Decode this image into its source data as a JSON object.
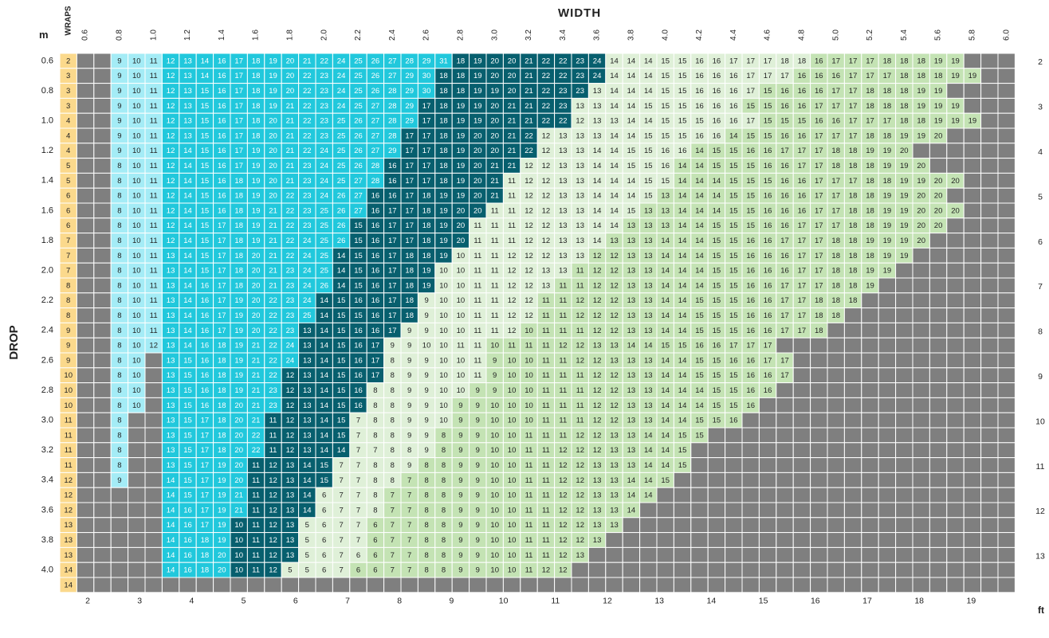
{
  "chart_data": {
    "type": "heatmap",
    "title": "WIDTH",
    "ylabel": "DROP",
    "corner_label": "m",
    "wraps_label": "WRAPS",
    "unit_label_bottom": "ft",
    "width_ticks_m": [
      "0.6",
      "0.8",
      "1.0",
      "1.2",
      "1.4",
      "1.6",
      "1.8",
      "2.0",
      "2.2",
      "2.4",
      "2.6",
      "2.8",
      "3.0",
      "3.2",
      "3.4",
      "3.6",
      "3.8",
      "4.0",
      "4.2",
      "4.4",
      "4.6",
      "4.8",
      "5.0",
      "5.2",
      "5.4",
      "5.6",
      "5.8",
      "6.0"
    ],
    "width_ticks_ft": [
      "2",
      "3",
      "4",
      "5",
      "6",
      "7",
      "8",
      "9",
      "10",
      "11",
      "12",
      "13",
      "14",
      "15",
      "16",
      "17",
      "18",
      "19"
    ],
    "drop_ticks_m": [
      "0.6",
      "0.8",
      "1.0",
      "1.2",
      "1.4",
      "1.6",
      "1.8",
      "2.0",
      "2.2",
      "2.4",
      "2.6",
      "2.8",
      "3.0",
      "3.2",
      "3.4",
      "3.6",
      "3.8",
      "4.0"
    ],
    "drop_ticks_ft": [
      "2",
      "3",
      "4",
      "5",
      "6",
      "7",
      "8",
      "9",
      "10",
      "11",
      "12",
      "13"
    ],
    "wraps": [
      2,
      3,
      3,
      3,
      4,
      4,
      4,
      5,
      5,
      6,
      6,
      6,
      7,
      7,
      7,
      8,
      8,
      8,
      9,
      9,
      9,
      10,
      10,
      10,
      11,
      11,
      11,
      11,
      12,
      12,
      12,
      13,
      13,
      13,
      14,
      14
    ],
    "colors": {
      "wraps": "#fbd98c",
      "light_blue": "#a4ecf6",
      "cyan": "#21c8dc",
      "dark_teal": "#075f6e",
      "pale_green": "#dff0d8",
      "light_green": "#c4e3b4",
      "green": "#98cf77",
      "blocked": "#7f7f7f",
      "label": "#222222"
    },
    "rows": [
      "XX 9,10,11|12,13,14,16,17,18,19,20,21,22,24,25,26,27,28,29,31|18,19,20,20,21,22,22,23,24|14,14,14,15,15,16,16,17,17,17,18,18|16,17,17,17,18,18,18,19,19|X",
      "XX 9,10,11|12,13,14,16,17,18,19,20,22,23,24,25,26,27,29,30|18,18,19,20,20,21,22,22,23,24|14,14,14,15,15,16,16,16,17,17,17|16,16,16,17,17,17,18,18,18,19,19|X",
      "XX 9,10,11|12,13,15,16,17,18,19,20,22,23,24,25,26,28,29,30|18,18,19,19,20,21,22,23,23|13,14,14,14,15,15,16,16,16,17|15,16,16,16,17,17,18,18,18,19,19|X",
      "XX 9,10,11|12,13,15,16,17,18,19,21,22,23,24,25,27,28,29|17,18,19,19,20,21,21,22,23|13,13,14,14,15,15,15,16,16,16|15,15,16,16,17,17,17,18,18,18,19,19,19|X",
      "XX 9,10,11|12,13,15,16,17,18,20,21,22,23,25,26,27,28,29|17,18,19,19,20,21,21,22,22|12,13,13,14,14,15,15,15,16,16,17|15,15,15,16,16,17,17,17,18,18,19,19,19|X",
      "XX 9,10,11|12,13,15,16,17,18,20,21,22,23,25,26,27,28|17,17,18,19,20,20,21,22|12,13,13,13,14,14,15,15,15,16,16|14,15,15,16,16,17,17,17,18,18,19,19,20|X",
      "XX 9,10,11|12,14,15,16,17,19,20,21,22,24,25,26,27,29|17,17,18,19,20,20,21,22|12,13,13,14,14,15,15,16,16|14,15,15,16,16,17,17,17,18,18,19,19,20|X",
      "XX 8,10,11|12,14,15,16,17,19,20,21,23,24,25,26,28|16,17,17,18,19,20,21,21|12,12,13,13,14,14,15,15,16|14,14,15,15,15,16,16,17,17,18,18,18,19,19,20|X",
      "XX 8,10,11|12,14,15,16,18,19,20,21,23,24,25,27,28|16,17,17,18,19,20,21|11,12,12,13,13,14,14,14,15,15|14,14,14,15,15,15,16,16,17,17,17,18,18,19,19,20,20|X",
      "XX 8,10,11|12,14,15,16,18,19,20,22,23,24,26,27|16,16,17,18,19,19,20,21|11,12,12,13,13,14,14,14,15|13,14,14,14,15,15,16,16,16,17,17,18,18,19,19,20,20|X",
      "XX 8,10,11|12,14,15,16,18,19,21,22,23,25,26,27|16,17,17,18,19,20,20|11,11,12,12,13,13,14,14,15|13,13,14,14,14,15,15,16,16,16,17,17,18,18,19,19,20,20,20|X",
      "XX 8,10,11|12,14,15,17,18,19,21,22,23,25,26|15,16,17,17,18,19,20|11,11,11,12,12,13,13,14,14|13,13,13,14,14,15,15,15,16,16,17,17,17,18,18,19,19,20,20|XX",
      "XX 8,10,11|12,14,15,17,18,19,21,22,24,25,26|15,16,17,17,18,19,20|11,11,11,12,12,13,13,14|13,13,13,14,14,14,15,15,16,16,17,17,17,18,18,19,19,19,20|XXX",
      "XX 8,10,11|13,14,15,17,18,20,21,22,24,25|14,15,16,17,18,18,19|10,11,11,12,12,12,13,13|12,12,13,13,14,14,14,15,15,16,16,16,17,17,18,18,18,19,19|XXXX",
      "XX 8,10,11|13,14,15,17,18,20,21,23,24,25|14,15,16,17,18,19|10,10,11,11,12,12,13,13|11,12,12,13,13,14,14,14,15,15,16,16,16,17,17,18,18,19,19|XXXXX",
      "XX 8,10,11|13,14,16,17,18,20,21,23,24,26|14,15,16,17,18,19|10,10,11,11,12,12,13|11,11,12,12,13,13,14,14,14,15,15,16,16,17,17,17,18,18,19|XXXXXX",
      "XX 8,10,11|13,14,16,17,19,20,22,23,24|14,15,16,16,17,18|9,10,10,11,11,12,12|11,11,12,12,12,13,13,14,14,15,15,15,16,16,17,17,18,18,18|XXXXXXX",
      "XX 8,10,11|13,14,16,17,19,20,22,23,25|14,15,15,16,17,18|9,10,10,11,11,12,12|11,11,12,12,12,13,13,14,14,15,15,15,16,16,17,17,18,18|XXXXXXXX",
      "XX 8,10,11|13,14,16,17,19,20,22,23|13,14,15,16,16,17|9,9,10,10,11,11,12|10,11,11,11,12,12,13,13,14,14,15,15,15,16,16,17,17,18|XXXXXXXXX",
      "XX 8,10,12|13,14,16,18,19,21,22,24|13,14,15,16,17|9,9,10,10,11,11|10,11,11,11,12,12,13,13,14,14,15,15,16,16,17,17,17|XXXXXXXXXX",
      "XX 8,10 X|13,15,16,18,19,21,22,24|13,14,15,16,17|8,9,9,10,10,11|9,10,10,11,11,12,12,13,13,13,14,14,15,15,16,16,17,17|XXXXXXXXXXX",
      "XX 8,10 X|13,15,16,18,19,21,22|12,13,14,15,16,17|8,9,9,10,10,11|9,10,10,11,11,11,12,12,13,13,14,14,15,15,15,16,16,17|XXXXXXXXXXXX",
      "XX 8,10 X|13,15,16,18,19,21,23|12,13,14,15,16|8,8,9,9,10,10|9,9,10,10,11,11,11,12,12,13,13,14,14,14,15,15,16,16|XXXXXXXXXXXXX",
      "XX 8,10 X|13,15,16,18,20,21,23|12,13,14,15,16|8,8,9,9,10|9,9,10,10,10,11,11,11,12,12,13,13,14,14,14,15,15,16|XXXXXXXXXXXXXX",
      "XX 8 XX|13,15,17,18,20,21|11,12,13,14,15|7,8,8,9,9,10|9,9,10,10,10,11,11,11,12,12,13,13,14,14,15,15,16|XXXXXXXXXXXXXXX",
      "XX 8 XX|13,15,17,18,20,22|11,12,13,14,15|7,8,8,9,9|8,9,9,10,10,11,11,11,12,12,13,13,14,14,15,15|XXXXXXXXXXXXXXXX",
      "XX 8 XX|13,15,17,18,20,22|11,12,13,14,14|7,7,8,8,9|8,9,9,10,10,11,11,12,12,12,13,13,14,14,15|XXXXXXXXXXXXXXXXX",
      "XX 8 XX|13,15,17,19,20|11,12,13,14,15|7,7,8,8,9|8,8,9,9,10,10,11,11,12,12,13,13,13,14,14,15|XXXXXXXXXXXXXXXXXX",
      "XX 9 XX|14,15,17,19,20|11,12,13,14,15|7,7,8,8|7,8,8,9,9,10,10,11,11,12,12,13,13,14,14,15|XXXXXXXXXXXXXXXXXXX",
      "XX XXX|14,15,17,19,21|11,12,13,14|6,7,7,8|7,7,8,8,9,9,10,10,11,11,12,12,13,13,14,14|XXXXXXXXXXXXXXXXXXXX",
      "XX XXX|14,16,17,19,21|11,12,13,14|6,7,7,8|7,7,8,8,9,9,10,10,11,11,12,12,13,13,14|XXXXXXXXXXXXXXXXXXXXX",
      "XX XXX|14,16,17,19|10,11,12,13|5,6,7,7|6,7,7,8,8,9,9,10,10,11,11,12,12,13,13|XXXXXXXXXXXXXXXXXXXXXX",
      "XX XXX|14,16,18,19|10,11,12,13|5,6,7,7|6,7,7,8,8,9,9,10,10,11,11,12,12,13|XXXXXXXXXXXXXXXXXXXXXXX",
      "XX XXX|14,16,18,20|10,11,12,13|5,6,7,6|6,7,7,8,8,9,9,10,10,11,11,12,13|XXXXXXXXXXXXXXXXXXXXXXXX",
      "XX XXX|14,16,18,20|10,11,12|5,5,6,7|6,6,7,7,8,8,9,9,10,10,11,12,12|XXXXXXXXXXXXXXXXXXXXXXXXX",
      "XX XXX|XXXXX|XXXX|XXXXX|XXXXXXXXXXXXXXXXXXXXXXXXXXXXXXXXXXXXXX"
    ]
  }
}
